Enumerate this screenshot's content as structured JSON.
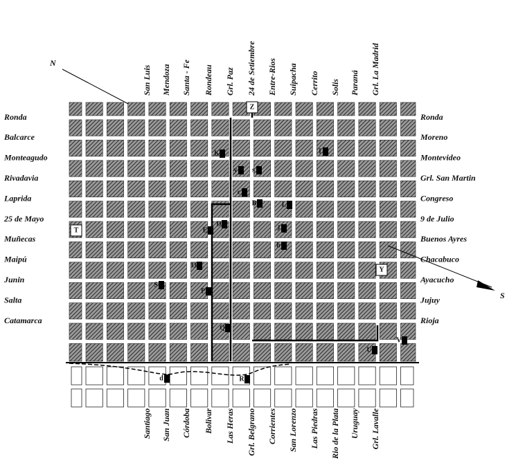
{
  "map": {
    "top_streets": [
      "San Luis",
      "Mendoza",
      "Santa - Fe",
      "Rondeau",
      "Grl. Paz",
      "24 de Setiembre",
      "Entre-Rios",
      "Suipacha",
      "Cerrito",
      "Solis",
      "Paraná",
      "Grl. La Madrid"
    ],
    "bottom_streets": [
      "Santiago",
      "San Juan",
      "Córdoba",
      "Bolivar",
      "Las Heras",
      "Grl. Belgrano",
      "Corrientes",
      "San Lorenzo",
      "Las Piedras",
      "Rio de la Plata",
      "Uruguay",
      "Grl. Lavalle"
    ],
    "left_streets": [
      "Ronda",
      "Balcarce",
      "Monteagudo",
      "Rivadavia",
      "Laprida",
      "25 de Mayo",
      "Muñecas",
      "Maipú",
      "Junin",
      "Salta",
      "Catamarca"
    ],
    "right_streets": [
      "Ronda",
      "Moreno",
      "Montevideo",
      "Grl. San Martin",
      "Congreso",
      "9 de Julio",
      "Buenos Ayres",
      "Chacabuco",
      "Ayacucho",
      "Jujuy",
      "Rioja"
    ],
    "markers": [
      "Z",
      "T",
      "Y",
      "K",
      "y",
      "s",
      "c",
      "B",
      "L",
      "D",
      "I",
      "E",
      "J",
      "b",
      "O",
      "S",
      "P",
      "Q",
      "U",
      "V",
      "R",
      "d"
    ],
    "compass": [
      "N",
      "S"
    ]
  }
}
